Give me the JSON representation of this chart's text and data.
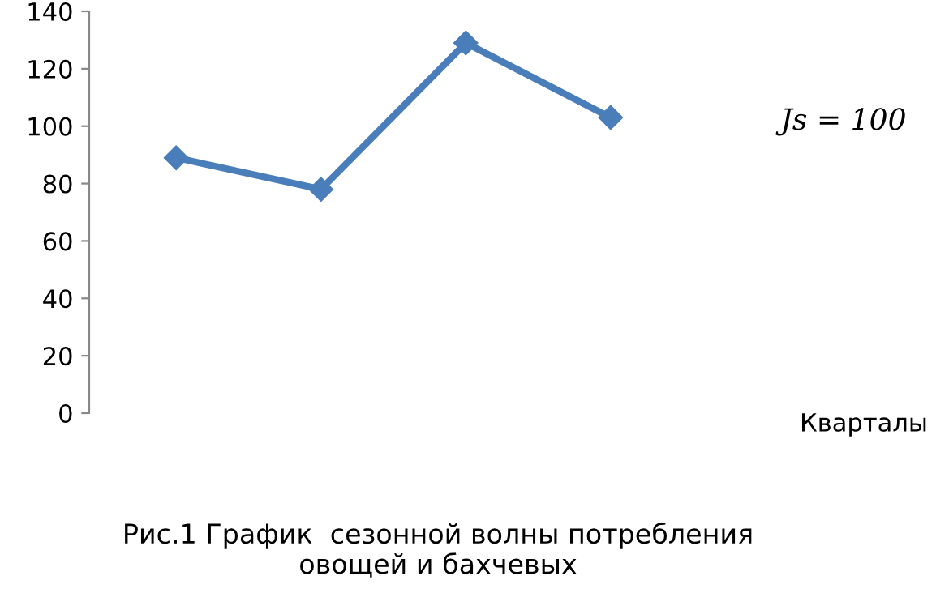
{
  "chart_data": {
    "type": "line",
    "categories": [
      null,
      null,
      null,
      null
    ],
    "series": [
      {
        "color": "#4a7ebb",
        "values": [
          89,
          78,
          129,
          103
        ]
      }
    ],
    "ylim": [
      0,
      140
    ],
    "yticks": [
      0,
      20,
      40,
      60,
      80,
      100,
      120,
      140
    ],
    "xlabel": "Кварталы",
    "marker": "diamond",
    "line_style": "solid",
    "grid": false,
    "legend": false,
    "annotations": [
      "Js = 100",
      "Рис.1 График  сезонной волны потребления\nовощей и бахчевых"
    ]
  }
}
